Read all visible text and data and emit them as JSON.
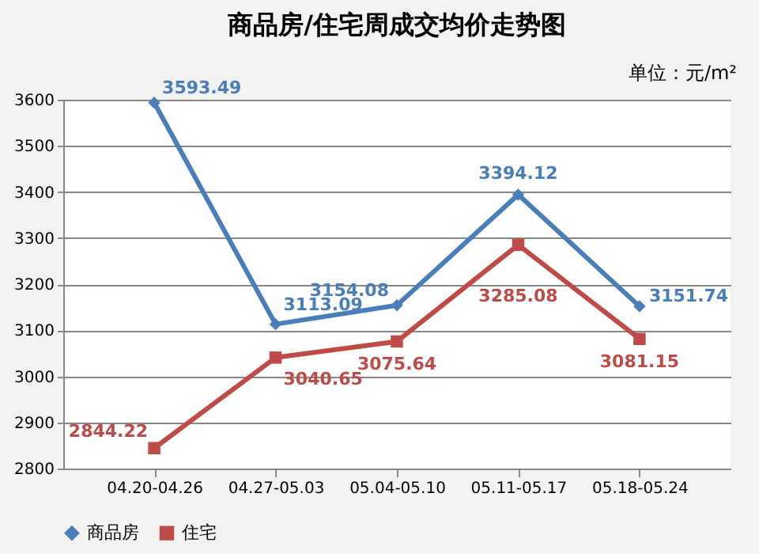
{
  "chart_data": {
    "type": "line",
    "title": "商品房/住宅周成交均价走势图",
    "annotations": [
      "单位：元/m²"
    ],
    "categories": [
      "04.20-04.26",
      "04.27-05.03",
      "05.04-05.10",
      "05.11-05.17",
      "05.18-05.24"
    ],
    "series": [
      {
        "name": "商品房",
        "color": "#4a7ebb",
        "marker": "diamond",
        "values": [
          3593.49,
          3113.09,
          3154.08,
          3394.12,
          3151.74
        ]
      },
      {
        "name": "住宅",
        "color": "#be4b48",
        "marker": "square",
        "values": [
          2844.22,
          3040.65,
          3075.64,
          3285.08,
          3081.15
        ]
      }
    ],
    "ylim": [
      2800,
      3600
    ],
    "yticks": [
      2800,
      2900,
      3000,
      3100,
      3200,
      3300,
      3400,
      3500,
      3600
    ],
    "grid": "y",
    "legend": "bottom",
    "data_labels": true
  }
}
